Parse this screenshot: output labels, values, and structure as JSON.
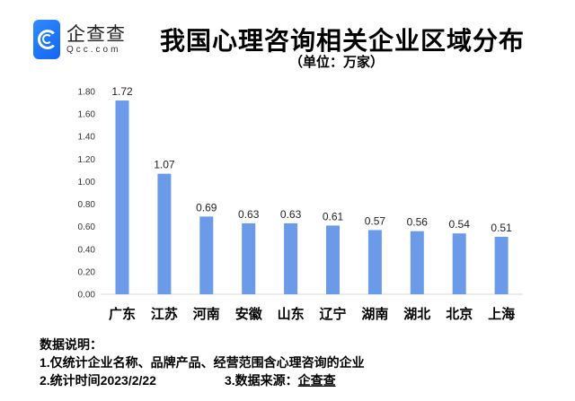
{
  "logo": {
    "name": "企查查",
    "domain": "Qcc.com"
  },
  "chart_data": {
    "type": "bar",
    "title": "我国心理咨询相关企业区域分布",
    "subtitle": "（单位：万家）",
    "categories": [
      "广东",
      "江苏",
      "河南",
      "安徽",
      "山东",
      "辽宁",
      "湖南",
      "湖北",
      "北京",
      "上海"
    ],
    "values": [
      1.72,
      1.07,
      0.69,
      0.63,
      0.63,
      0.61,
      0.57,
      0.56,
      0.54,
      0.51
    ],
    "value_labels": [
      "1.72",
      "1.07",
      "0.69",
      "0.63",
      "0.63",
      "0.61",
      "0.57",
      "0.56",
      "0.54",
      "0.51"
    ],
    "ylim": [
      0,
      1.8
    ],
    "yticks": [
      "0.00",
      "0.20",
      "0.40",
      "0.60",
      "0.80",
      "1.00",
      "1.20",
      "1.40",
      "1.60",
      "1.80"
    ],
    "grid": false,
    "bar_color": "#6b9be8"
  },
  "notes": {
    "heading": "数据说明：",
    "line1": "1.仅统计企业名称、品牌产品、经营范围含心理咨询的企业",
    "line2": "2.统计时间2023/2/22",
    "source_label": "3.数据来源：",
    "source_name": "企查查"
  }
}
